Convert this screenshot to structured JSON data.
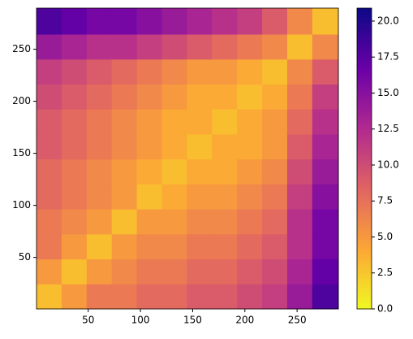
{
  "chart_data": {
    "type": "heatmap",
    "x_edges": [
      0.5,
      24.5,
      48.5,
      72.5,
      96.5,
      120.5,
      144.5,
      168.5,
      192.5,
      216.5,
      240.5,
      264.5,
      289.5
    ],
    "y_edges": [
      0.5,
      24.5,
      48.5,
      72.5,
      96.5,
      120.5,
      144.5,
      168.5,
      192.5,
      216.5,
      240.5,
      264.5,
      289.5
    ],
    "values": [
      [
        3,
        5,
        7,
        7,
        8,
        8,
        9,
        9,
        10,
        11,
        14,
        18
      ],
      [
        5,
        3,
        5,
        6,
        7,
        7,
        8,
        8,
        9,
        10,
        13,
        17
      ],
      [
        7,
        5,
        3,
        5,
        6,
        6,
        7,
        7,
        8,
        9,
        12,
        16
      ],
      [
        7,
        6,
        5,
        3,
        5,
        5,
        6,
        6,
        7,
        8,
        12,
        16
      ],
      [
        8,
        7,
        6,
        5,
        3,
        4,
        5,
        5,
        6,
        7,
        11,
        15
      ],
      [
        8,
        7,
        6,
        5,
        4,
        3,
        4,
        4,
        5,
        6,
        10,
        14
      ],
      [
        9,
        8,
        7,
        6,
        5,
        4,
        3,
        4,
        4,
        5,
        9,
        13
      ],
      [
        9,
        8,
        7,
        6,
        5,
        4,
        4,
        3,
        4,
        5,
        8,
        12
      ],
      [
        10,
        9,
        8,
        7,
        6,
        5,
        4,
        4,
        3,
        4,
        7,
        11
      ],
      [
        11,
        10,
        9,
        8,
        7,
        6,
        5,
        5,
        4,
        3,
        6,
        9
      ],
      [
        14,
        13,
        12,
        12,
        11,
        10,
        9,
        8,
        7,
        6,
        3,
        6
      ],
      [
        18,
        17,
        16,
        16,
        15,
        14,
        13,
        12,
        11,
        9,
        6,
        3
      ]
    ],
    "xlim": [
      0.5,
      289.5
    ],
    "ylim": [
      0.5,
      289.5
    ],
    "xticks": [
      50,
      100,
      150,
      200,
      250
    ],
    "yticks": [
      50,
      100,
      150,
      200,
      250
    ],
    "clim": [
      0,
      20.9
    ],
    "cticks": [
      {
        "value": 0,
        "label": "0.0"
      },
      {
        "value": 2.5,
        "label": "2.5"
      },
      {
        "value": 5,
        "label": "5.0"
      },
      {
        "value": 7.5,
        "label": "7.5"
      },
      {
        "value": 10,
        "label": "10.0"
      },
      {
        "value": 12.5,
        "label": "12.5"
      },
      {
        "value": 15,
        "label": "15.0"
      },
      {
        "value": 17.5,
        "label": "17.5"
      },
      {
        "value": 20,
        "label": "20.0"
      }
    ],
    "colormap": [
      "#f0f921",
      "#fca636",
      "#e16462",
      "#b12a90",
      "#6a00a8",
      "#0d0887"
    ]
  }
}
